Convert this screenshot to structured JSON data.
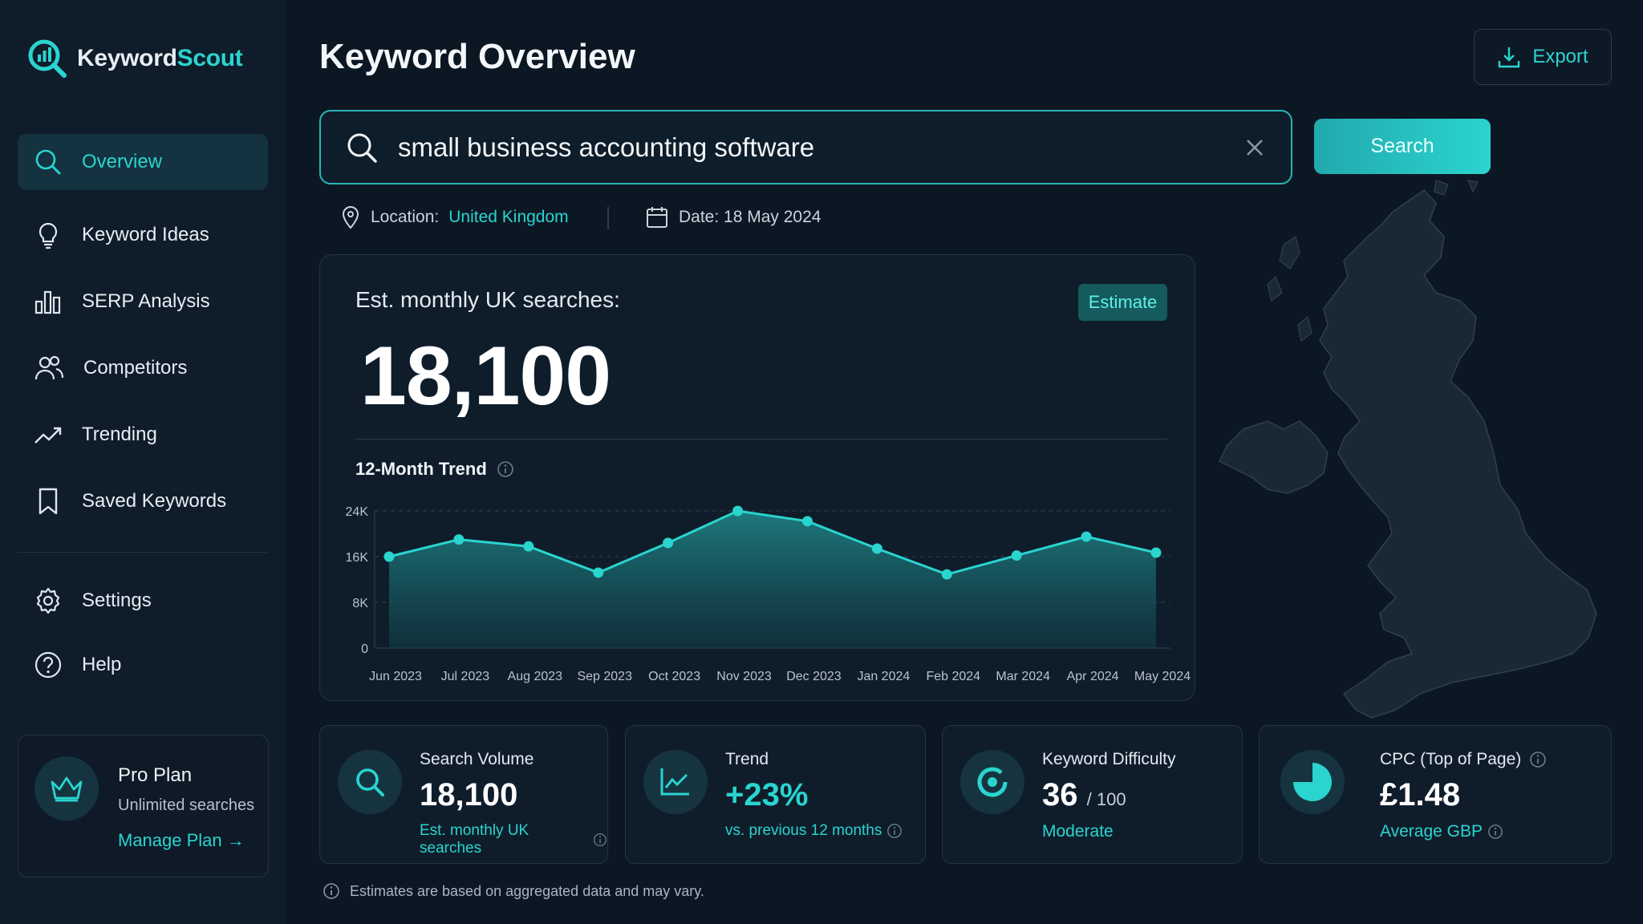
{
  "app": {
    "name_part1": "Keyword",
    "name_part2": "Scout"
  },
  "sidebar": {
    "items": [
      {
        "label": "Overview",
        "icon": "search-icon"
      },
      {
        "label": "Keyword Ideas",
        "icon": "lightbulb-icon"
      },
      {
        "label": "SERP Analysis",
        "icon": "bar-chart-icon"
      },
      {
        "label": "Competitors",
        "icon": "users-icon"
      },
      {
        "label": "Trending",
        "icon": "trend-up-icon"
      },
      {
        "label": "Saved Keywords",
        "icon": "bookmark-icon"
      },
      {
        "label": "Settings",
        "icon": "gear-icon"
      },
      {
        "label": "Help",
        "icon": "help-icon"
      }
    ],
    "plan": {
      "title": "Pro Plan",
      "subtitle": "Unlimited searches",
      "link": "Manage Plan →"
    }
  },
  "header": {
    "title": "Keyword Overview",
    "export_label": "Export"
  },
  "search": {
    "value": "small business accounting software",
    "button_label": "Search"
  },
  "meta": {
    "location_label": "Location:",
    "location_value": "United Kingdom",
    "date_label": "Date: 18 May 2024"
  },
  "main_card": {
    "label": "Est. monthly UK searches:",
    "badge": "Estimate",
    "value": "18,100",
    "trend_title": "12-Month Trend"
  },
  "chart_data": {
    "type": "area",
    "title": "12-Month Trend",
    "categories": [
      "Jun 2023",
      "Jul 2023",
      "Aug 2023",
      "Sep 2023",
      "Oct 2023",
      "Nov 2023",
      "Dec 2023",
      "Jan 2024",
      "Feb 2024",
      "Mar 2024",
      "Apr 2024",
      "May 2024"
    ],
    "series": [
      {
        "values": [
          16000,
          19000,
          17800,
          13200,
          18400,
          24000,
          22200,
          17400,
          12900,
          16200,
          19500,
          16700
        ]
      }
    ],
    "yticks": [
      "0",
      "8K",
      "16K",
      "24K"
    ],
    "ylim": [
      0,
      24000
    ],
    "grid": true,
    "color": "#2ad4cf"
  },
  "stats": [
    {
      "label": "Search Volume",
      "value": "18,100",
      "sub": "Est. monthly UK searches",
      "icon": "search-icon"
    },
    {
      "label": "Trend",
      "value": "+23%",
      "sub": "vs. previous 12 months",
      "icon": "line-chart-icon"
    },
    {
      "label": "Keyword Difficulty",
      "value": "36",
      "value_suffix": "/ 100",
      "sub": "Moderate",
      "icon": "target-icon"
    },
    {
      "label": "CPC (Top of Page)",
      "value": "£1.48",
      "sub": "Average GBP",
      "icon": "pie-chart-icon"
    }
  ],
  "footnote": "Estimates are based on aggregated data and may vary.",
  "colors": {
    "accent": "#2ad4cf",
    "background": "#0c1724",
    "card": "#0f1d2b"
  }
}
